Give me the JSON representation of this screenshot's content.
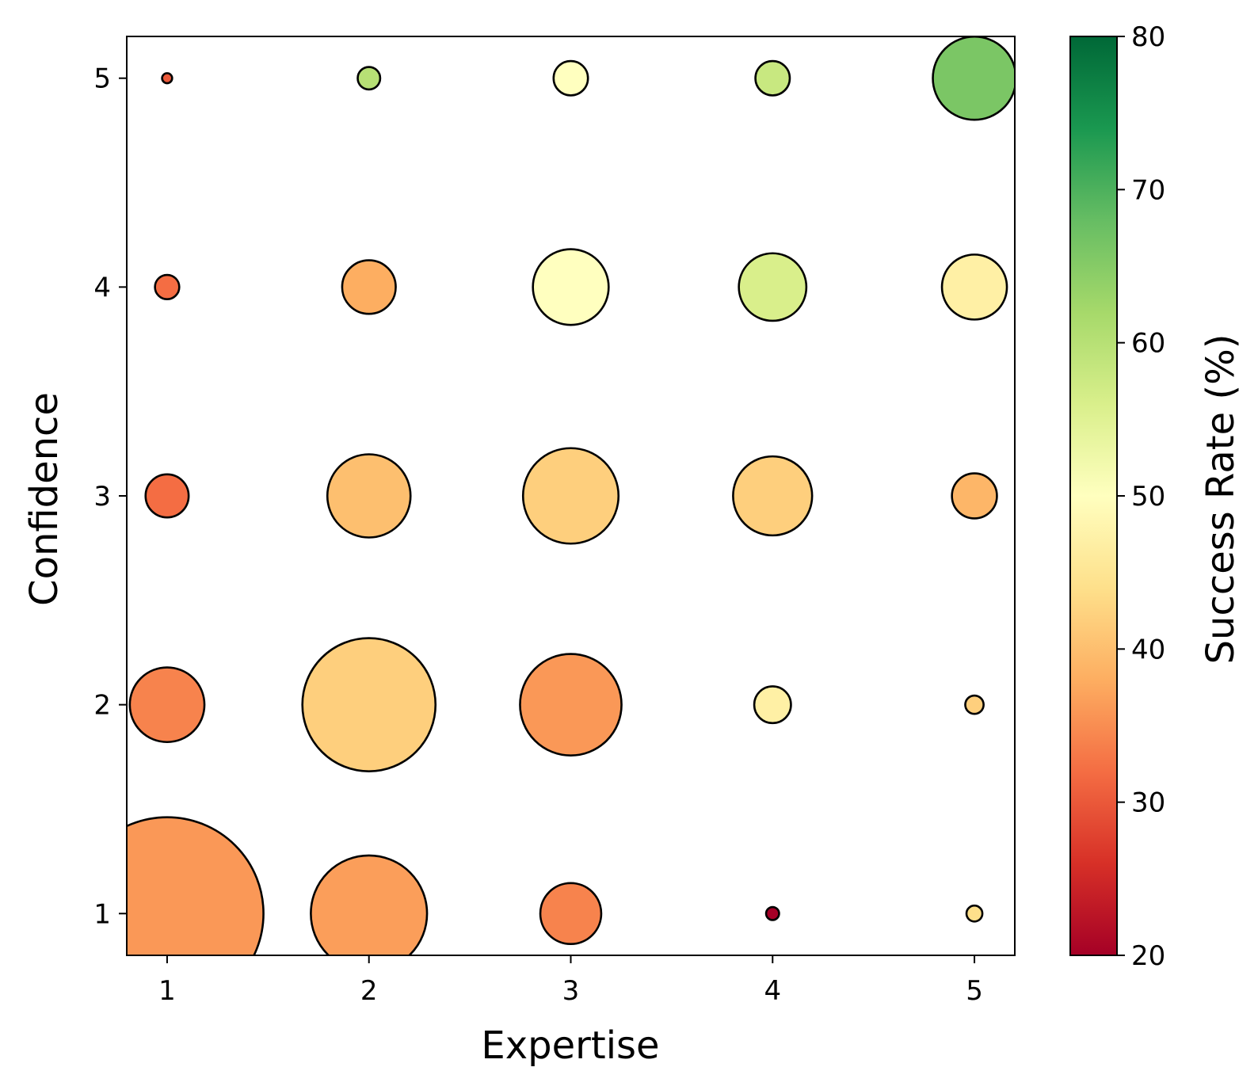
{
  "chart_data": {
    "type": "scatter",
    "encoding": "bubble grid; marker size = count of cases, marker color = success rate",
    "title": "",
    "xlabel": "Expertise",
    "ylabel": "Confidence",
    "xlim": [
      0.8,
      5.2
    ],
    "ylim": [
      0.8,
      5.2
    ],
    "xticks": [
      "1",
      "2",
      "3",
      "4",
      "5"
    ],
    "yticks": [
      "1",
      "2",
      "3",
      "4",
      "5"
    ],
    "grid": false,
    "legend": "none",
    "colorbar": {
      "label": "Success Rate (%)",
      "colormap": "RdYlGn",
      "range": [
        20,
        80
      ],
      "ticks": [
        "20",
        "30",
        "40",
        "50",
        "60",
        "70",
        "80"
      ],
      "placement": "right"
    },
    "points": [
      {
        "x": 1,
        "y": 1,
        "count": 220,
        "success_rate": 36
      },
      {
        "x": 2,
        "y": 1,
        "count": 80,
        "success_rate": 36.5
      },
      {
        "x": 3,
        "y": 1,
        "count": 22,
        "success_rate": 34
      },
      {
        "x": 4,
        "y": 1,
        "count": 1,
        "success_rate": 20
      },
      {
        "x": 5,
        "y": 1,
        "count": 1.5,
        "success_rate": 44
      },
      {
        "x": 1,
        "y": 2,
        "count": 33,
        "success_rate": 34
      },
      {
        "x": 2,
        "y": 2,
        "count": 105,
        "success_rate": 42
      },
      {
        "x": 3,
        "y": 2,
        "count": 61,
        "success_rate": 36
      },
      {
        "x": 4,
        "y": 2,
        "count": 8,
        "success_rate": 47
      },
      {
        "x": 5,
        "y": 2,
        "count": 2,
        "success_rate": 42
      },
      {
        "x": 1,
        "y": 3,
        "count": 11,
        "success_rate": 32
      },
      {
        "x": 2,
        "y": 3,
        "count": 41,
        "success_rate": 40
      },
      {
        "x": 3,
        "y": 3,
        "count": 54,
        "success_rate": 42
      },
      {
        "x": 4,
        "y": 3,
        "count": 37,
        "success_rate": 42
      },
      {
        "x": 5,
        "y": 3,
        "count": 12,
        "success_rate": 39
      },
      {
        "x": 1,
        "y": 4,
        "count": 3.5,
        "success_rate": 32
      },
      {
        "x": 2,
        "y": 4,
        "count": 17,
        "success_rate": 38
      },
      {
        "x": 3,
        "y": 4,
        "count": 34,
        "success_rate": 50
      },
      {
        "x": 4,
        "y": 4,
        "count": 27,
        "success_rate": 56
      },
      {
        "x": 5,
        "y": 4,
        "count": 25,
        "success_rate": 47
      },
      {
        "x": 1,
        "y": 5,
        "count": 0.6,
        "success_rate": 30
      },
      {
        "x": 2,
        "y": 5,
        "count": 3,
        "success_rate": 60
      },
      {
        "x": 3,
        "y": 5,
        "count": 7,
        "success_rate": 50
      },
      {
        "x": 4,
        "y": 5,
        "count": 7,
        "success_rate": 58
      },
      {
        "x": 5,
        "y": 5,
        "count": 41,
        "success_rate": 66
      }
    ]
  }
}
